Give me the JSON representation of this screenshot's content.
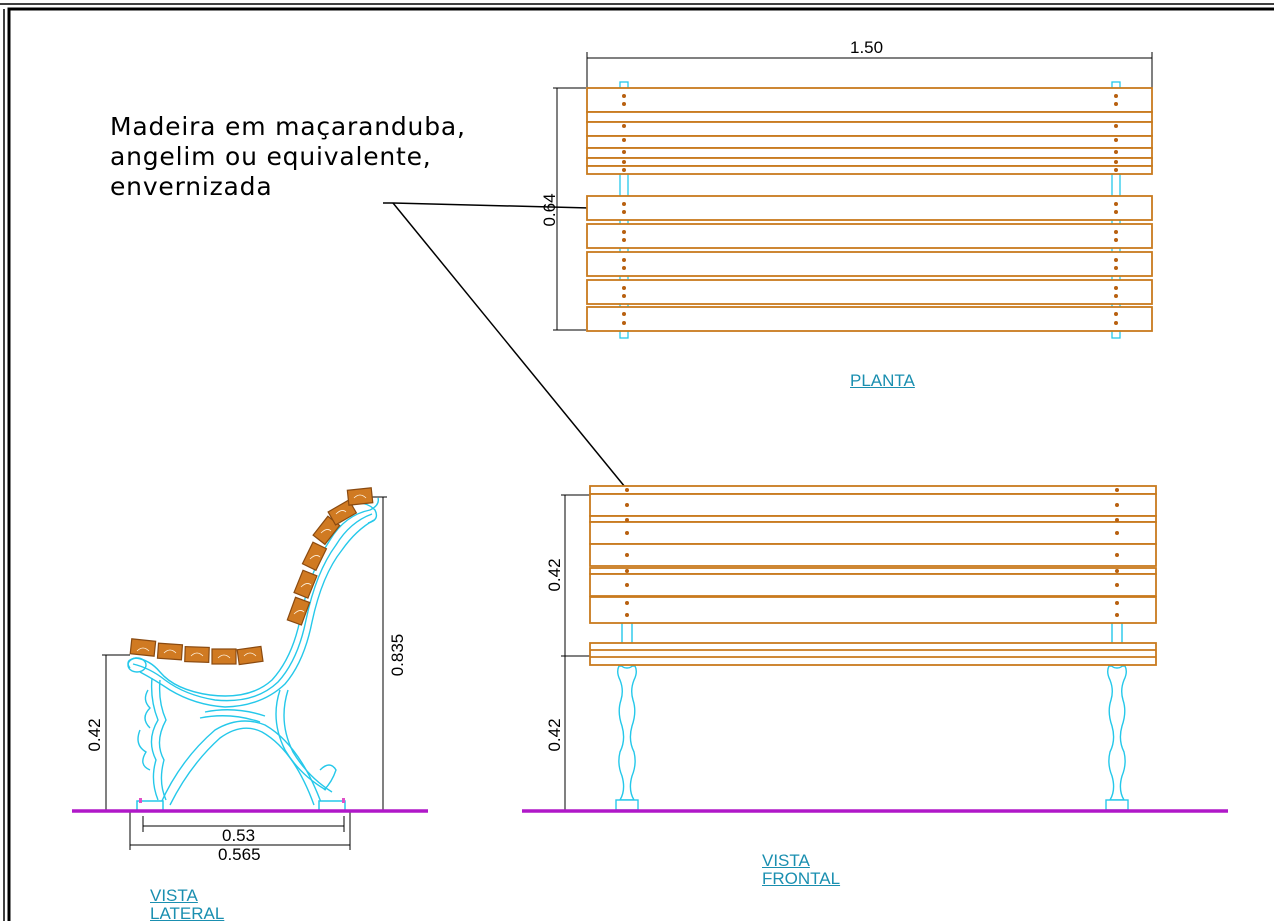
{
  "annotation": {
    "line1": "Madeira em maçaranduba,",
    "line2": "angelim ou equivalente,",
    "line3": "envernizada"
  },
  "views": {
    "plan": {
      "title": "PLANTA",
      "width": "1.50",
      "depth": "0.64"
    },
    "frontal": {
      "title_line1": "VISTA",
      "title_line2": "FRONTAL",
      "back_height": "0.42",
      "seat_height": "0.42"
    },
    "lateral": {
      "title_line1": "VISTA",
      "title_line2": "LATERAL",
      "seat_height": "0.42",
      "total_height": "0.835",
      "leg_spacing": "0.53",
      "total_depth": "0.565"
    }
  },
  "colors": {
    "wood": "#c87a1e",
    "metal": "#25c8ea",
    "ground": "#b018c8",
    "label": "#1a8fb0",
    "dots": "#b86010"
  }
}
